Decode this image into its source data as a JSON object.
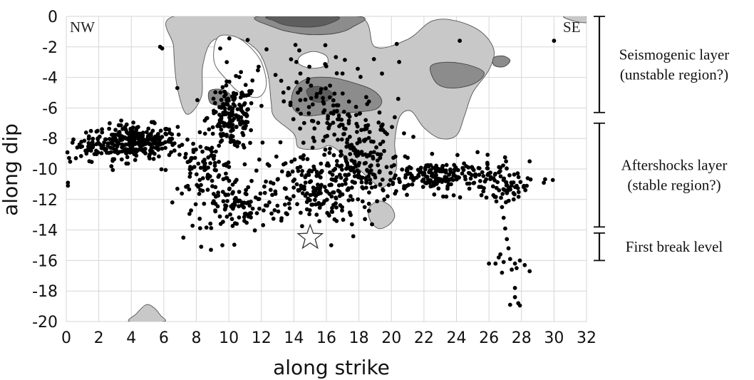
{
  "chart_data": {
    "type": "scatter",
    "xlabel": "along strike",
    "ylabel": "along dip",
    "xlim": [
      0,
      32
    ],
    "ylim": [
      -20,
      0
    ],
    "x_ticks": [
      0,
      2,
      4,
      6,
      8,
      10,
      12,
      14,
      16,
      18,
      20,
      22,
      24,
      26,
      28,
      30,
      32
    ],
    "y_ticks": [
      0,
      -2,
      -4,
      -6,
      -8,
      -10,
      -12,
      -14,
      -16,
      -18,
      -20
    ],
    "grid": true,
    "corner_labels": {
      "left": "NW",
      "right": "SE"
    },
    "side_annotations": [
      {
        "lines": [
          "Seismogenic layer",
          "(unstable region?)"
        ],
        "y_range": [
          0,
          -6.3
        ]
      },
      {
        "lines": [
          "Aftershocks layer",
          "(stable region?)"
        ],
        "y_range": [
          -7,
          -13.8
        ]
      },
      {
        "lines": [
          "First break level"
        ],
        "y_range": [
          -14.2,
          -16
        ]
      }
    ],
    "hypocenter": {
      "x": 15,
      "y": -14.5,
      "marker": "star"
    },
    "slip_contours": [
      {
        "level": 1,
        "color": "#c8c8c8",
        "points": [
          [
            13,
            0
          ],
          [
            18,
            0
          ],
          [
            19,
            -2
          ],
          [
            21,
            -1.5
          ],
          [
            22.5,
            -0.3
          ],
          [
            24,
            -0.3
          ],
          [
            25.5,
            -1
          ],
          [
            26.3,
            -2.2
          ],
          [
            26,
            -3.5
          ],
          [
            25,
            -5
          ],
          [
            24.5,
            -6.5
          ],
          [
            24,
            -7.8
          ],
          [
            23,
            -8
          ],
          [
            22,
            -7.3
          ],
          [
            21.2,
            -6.2
          ],
          [
            20.5,
            -6.6
          ],
          [
            20.2,
            -8.3
          ],
          [
            20.3,
            -10
          ],
          [
            19.5,
            -11.2
          ],
          [
            18.5,
            -10.5
          ],
          [
            17.5,
            -9.5
          ],
          [
            16.3,
            -8.5
          ],
          [
            15.5,
            -8.7
          ],
          [
            14.3,
            -8.6
          ],
          [
            14,
            -7.7
          ],
          [
            12.8,
            -6.6
          ],
          [
            12.6,
            -5.6
          ],
          [
            12.4,
            -3.8
          ],
          [
            11.8,
            -2.3
          ],
          [
            10.5,
            -1.4
          ],
          [
            9,
            -1.6
          ],
          [
            8.4,
            -3.2
          ],
          [
            8.3,
            -5.3
          ],
          [
            7.4,
            -6.4
          ],
          [
            6.8,
            -4.5
          ],
          [
            6.6,
            -2
          ],
          [
            6.6,
            0
          ]
        ]
      },
      {
        "level": 1,
        "color": "#c8c8c8",
        "points": [
          [
            19.2,
            -12.1
          ],
          [
            19.9,
            -12.4
          ],
          [
            20.2,
            -13.1
          ],
          [
            19.8,
            -13.7
          ],
          [
            19.2,
            -13.9
          ],
          [
            18.7,
            -13.4
          ],
          [
            18.6,
            -12.6
          ]
        ]
      },
      {
        "level": 1,
        "color": "#c8c8c8",
        "points": [
          [
            3.9,
            -20
          ],
          [
            4.3,
            -19.5
          ],
          [
            4.9,
            -18.9
          ],
          [
            5.4,
            -19.1
          ],
          [
            5.8,
            -19.6
          ],
          [
            6,
            -20
          ]
        ]
      },
      {
        "level": 2,
        "color": "#8c8c8c",
        "points": [
          [
            11.8,
            0
          ],
          [
            18,
            0
          ],
          [
            17.6,
            -0.7
          ],
          [
            16.6,
            -1.1
          ],
          [
            15.2,
            -1.2
          ],
          [
            14.2,
            -1.1
          ],
          [
            13,
            -0.8
          ]
        ]
      },
      {
        "level": 2,
        "color": "#8c8c8c",
        "points": [
          [
            14,
            -4.8
          ],
          [
            14.8,
            -4.1
          ],
          [
            16.2,
            -4
          ],
          [
            17.5,
            -4.3
          ],
          [
            18.8,
            -4.8
          ],
          [
            19.4,
            -5.5
          ],
          [
            19,
            -6.1
          ],
          [
            17.5,
            -6.3
          ],
          [
            16,
            -6.4
          ],
          [
            14.6,
            -6.5
          ],
          [
            13.9,
            -5.9
          ]
        ]
      },
      {
        "level": 2,
        "color": "#8c8c8c",
        "points": [
          [
            22.4,
            -3.3
          ],
          [
            23.4,
            -3
          ],
          [
            24.8,
            -3.2
          ],
          [
            25.7,
            -3.7
          ],
          [
            25.1,
            -4.4
          ],
          [
            23.8,
            -4.7
          ],
          [
            22.8,
            -4.4
          ]
        ]
      },
      {
        "level": 2,
        "color": "#8c8c8c",
        "points": [
          [
            26.3,
            -2.7
          ],
          [
            26.9,
            -2.6
          ],
          [
            27.3,
            -2.9
          ],
          [
            26.9,
            -3.3
          ],
          [
            26.3,
            -3.2
          ]
        ]
      },
      {
        "level": 2,
        "color": "#8c8c8c",
        "points": [
          [
            8.8,
            -4.9
          ],
          [
            9.6,
            -4.8
          ],
          [
            10.2,
            -5.3
          ],
          [
            9.8,
            -5.8
          ],
          [
            8.9,
            -5.7
          ]
        ]
      },
      {
        "level": 3,
        "color": "#5e5e5e",
        "points": [
          [
            12.5,
            0
          ],
          [
            16.6,
            0
          ],
          [
            16.1,
            -0.5
          ],
          [
            15,
            -0.7
          ],
          [
            13.6,
            -0.6
          ],
          [
            12.8,
            -0.3
          ]
        ]
      },
      {
        "level": 3,
        "color": "#5e5e5e",
        "points": [
          [
            14.8,
            -4.8
          ],
          [
            15.6,
            -4.6
          ],
          [
            16.4,
            -5.1
          ],
          [
            15.9,
            -5.6
          ],
          [
            15.1,
            -5.5
          ]
        ]
      },
      {
        "level": 1,
        "color": "#c8c8c8",
        "points": [
          [
            30.6,
            0
          ],
          [
            32,
            0
          ],
          [
            32,
            -0.4
          ],
          [
            31.2,
            -0.3
          ]
        ]
      }
    ],
    "holes": [
      {
        "points": [
          [
            9.3,
            -1.4
          ],
          [
            10.3,
            -1.3
          ],
          [
            11.2,
            -1.9
          ],
          [
            12,
            -3
          ],
          [
            12.3,
            -4.5
          ],
          [
            11.8,
            -5.3
          ],
          [
            10.7,
            -5
          ],
          [
            9.9,
            -4.2
          ],
          [
            9.1,
            -3
          ]
        ]
      },
      {
        "points": [
          [
            14.4,
            -2.6
          ],
          [
            15.2,
            -2.3
          ],
          [
            16,
            -2.6
          ],
          [
            16,
            -3.2
          ],
          [
            15.1,
            -3.4
          ],
          [
            14.3,
            -3.1
          ]
        ]
      }
    ],
    "clusters": [
      {
        "name": "nw-band",
        "cx": 4.2,
        "cy": -8.2,
        "sx": 1.3,
        "sy": 0.55,
        "n": 300
      },
      {
        "name": "nw-west",
        "cx": 1.2,
        "cy": -8.8,
        "sx": 0.7,
        "sy": 0.4,
        "n": 35
      },
      {
        "name": "col-10",
        "cx": 10.2,
        "cy": -6.6,
        "sx": 0.75,
        "sy": 1.1,
        "n": 170
      },
      {
        "name": "band-8",
        "cx": 8.4,
        "cy": -10.1,
        "sx": 1.1,
        "sy": 0.9,
        "n": 90
      },
      {
        "name": "lower-9-12",
        "cx": 10.6,
        "cy": -12.4,
        "sx": 1.4,
        "sy": 0.9,
        "n": 110
      },
      {
        "name": "centre-15",
        "cx": 15.1,
        "cy": -11.3,
        "sx": 1.3,
        "sy": 1.1,
        "n": 170
      },
      {
        "name": "cloud-18",
        "cx": 18.2,
        "cy": -9.7,
        "sx": 1.2,
        "sy": 1.5,
        "n": 170
      },
      {
        "name": "upper-17",
        "cx": 16.6,
        "cy": -6.7,
        "sx": 1.6,
        "sy": 0.9,
        "n": 90
      },
      {
        "name": "se-band",
        "cx": 23.4,
        "cy": -10.5,
        "sx": 2.2,
        "sy": 0.55,
        "n": 220
      },
      {
        "name": "se-end",
        "cx": 27,
        "cy": -11.4,
        "sx": 0.6,
        "sy": 0.35,
        "n": 40
      },
      {
        "name": "high-sparse",
        "cx": 14.8,
        "cy": -3.4,
        "sx": 3,
        "sy": 1.1,
        "n": 45
      }
    ],
    "events": [
      [
        0.1,
        -10.9
      ],
      [
        0.1,
        -11.1
      ],
      [
        5.9,
        -2.1
      ],
      [
        30,
        -1.6
      ],
      [
        24.2,
        -1.6
      ],
      [
        28.5,
        -9.5
      ],
      [
        16.3,
        -15
      ],
      [
        7.2,
        -14.5
      ],
      [
        8.9,
        -15.3
      ],
      [
        9.6,
        -15
      ],
      [
        8.3,
        -15.1
      ],
      [
        26.8,
        -12.5
      ],
      [
        26.9,
        -13.2
      ],
      [
        27,
        -13.9
      ],
      [
        27.1,
        -14.6
      ],
      [
        27.2,
        -15.2
      ],
      [
        26.6,
        -15.8
      ],
      [
        26,
        -16.2
      ],
      [
        26.4,
        -16.2
      ],
      [
        26.9,
        -16.1
      ],
      [
        27.6,
        -16.2
      ],
      [
        27.9,
        -16
      ],
      [
        28.2,
        -16.3
      ],
      [
        28.5,
        -16.7
      ],
      [
        27.4,
        -16.6
      ],
      [
        26.8,
        -16.8
      ],
      [
        27.6,
        -17.8
      ],
      [
        27.6,
        -18.4
      ],
      [
        27.8,
        -18.8
      ],
      [
        27.9,
        -18.95
      ],
      [
        27.3,
        -18.9
      ],
      [
        27.7,
        -16.5
      ],
      [
        26.7,
        -15.6
      ],
      [
        27.3,
        -15.9
      ]
    ]
  }
}
